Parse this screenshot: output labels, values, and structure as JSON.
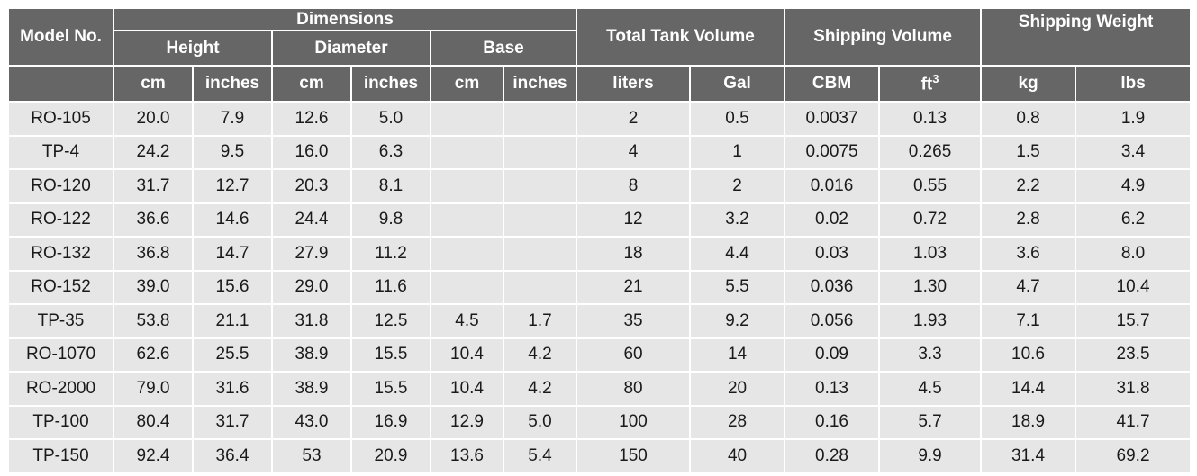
{
  "headers": {
    "model_no": "Model No.",
    "dimensions": "Dimensions",
    "height": "Height",
    "diameter": "Diameter",
    "base": "Base",
    "total_tank_volume": "Total Tank Volume",
    "shipping_volume": "Shipping Volume",
    "shipping_weight": "Shipping Weight"
  },
  "units": {
    "height_cm": "cm",
    "height_in": "inches",
    "diameter_cm": "cm",
    "diameter_in": "inches",
    "base_cm": "cm",
    "base_in": "inches",
    "volume_liters": "liters",
    "volume_gal": "Gal",
    "ship_cbm": "CBM",
    "ship_ft": "ft",
    "ship_ft_exp": "3",
    "weight_kg": "kg",
    "weight_lbs": "lbs"
  },
  "rows": [
    [
      "RO-105",
      "20.0",
      "7.9",
      "12.6",
      "5.0",
      "",
      "",
      "2",
      "0.5",
      "0.0037",
      "0.13",
      "0.8",
      "1.9"
    ],
    [
      "TP-4",
      "24.2",
      "9.5",
      "16.0",
      "6.3",
      "",
      "",
      "4",
      "1",
      "0.0075",
      "0.265",
      "1.5",
      "3.4"
    ],
    [
      "RO-120",
      "31.7",
      "12.7",
      "20.3",
      "8.1",
      "",
      "",
      "8",
      "2",
      "0.016",
      "0.55",
      "2.2",
      "4.9"
    ],
    [
      "RO-122",
      "36.6",
      "14.6",
      "24.4",
      "9.8",
      "",
      "",
      "12",
      "3.2",
      "0.02",
      "0.72",
      "2.8",
      "6.2"
    ],
    [
      "RO-132",
      "36.8",
      "14.7",
      "27.9",
      "11.2",
      "",
      "",
      "18",
      "4.4",
      "0.03",
      "1.03",
      "3.6",
      "8.0"
    ],
    [
      "RO-152",
      "39.0",
      "15.6",
      "29.0",
      "11.6",
      "",
      "",
      "21",
      "5.5",
      "0.036",
      "1.30",
      "4.7",
      "10.4"
    ],
    [
      "TP-35",
      "53.8",
      "21.1",
      "31.8",
      "12.5",
      "4.5",
      "1.7",
      "35",
      "9.2",
      "0.056",
      "1.93",
      "7.1",
      "15.7"
    ],
    [
      "RO-1070",
      "62.6",
      "25.5",
      "38.9",
      "15.5",
      "10.4",
      "4.2",
      "60",
      "14",
      "0.09",
      "3.3",
      "10.6",
      "23.5"
    ],
    [
      "RO-2000",
      "79.0",
      "31.6",
      "38.9",
      "15.5",
      "10.4",
      "4.2",
      "80",
      "20",
      "0.13",
      "4.5",
      "14.4",
      "31.8"
    ],
    [
      "TP-100",
      "80.4",
      "31.7",
      "43.0",
      "16.9",
      "12.9",
      "5.0",
      "100",
      "28",
      "0.16",
      "5.7",
      "18.9",
      "41.7"
    ],
    [
      "TP-150",
      "92.4",
      "36.4",
      "53",
      "20.9",
      "13.6",
      "5.4",
      "150",
      "40",
      "0.28",
      "9.9",
      "31.4",
      "69.2"
    ]
  ]
}
